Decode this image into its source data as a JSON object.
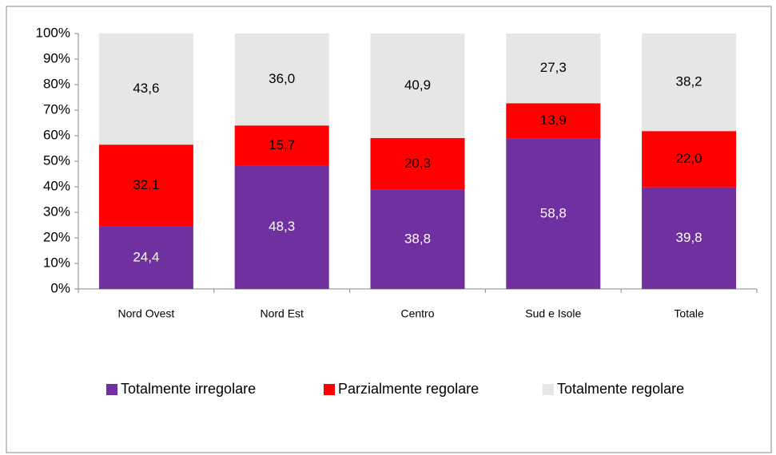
{
  "chart_data": {
    "type": "stacked_bar",
    "categories": [
      "Nord Ovest",
      "Nord Est",
      "Centro",
      "Sud e Isole",
      "Totale"
    ],
    "series": [
      {
        "name": "Totalmente irregolare",
        "color": "#7030a0",
        "label_color": "#ffffff",
        "values": [
          24.4,
          48.3,
          38.8,
          58.8,
          39.8
        ],
        "value_labels": [
          "24,4",
          "48,3",
          "38,8",
          "58,8",
          "39,8"
        ]
      },
      {
        "name": "Parzialmente regolare",
        "color": "#ff0000",
        "label_color": "#000000",
        "values": [
          32.1,
          15.7,
          20.3,
          13.9,
          22.0
        ],
        "value_labels": [
          "32,1",
          "15,7",
          "20,3",
          "13,9",
          "22,0"
        ]
      },
      {
        "name": "Totalmente regolare",
        "color": "#e6e6e6",
        "label_color": "#000000",
        "values": [
          43.6,
          36.0,
          40.9,
          27.3,
          38.2
        ],
        "value_labels": [
          "43,6",
          "36,0",
          "40,9",
          "27,3",
          "38,2"
        ]
      }
    ],
    "ylim": [
      0,
      100
    ],
    "yticks": [
      {
        "value": 0,
        "label": "0%"
      },
      {
        "value": 10,
        "label": "10%"
      },
      {
        "value": 20,
        "label": "20%"
      },
      {
        "value": 30,
        "label": "30%"
      },
      {
        "value": 40,
        "label": "40%"
      },
      {
        "value": 50,
        "label": "50%"
      },
      {
        "value": 60,
        "label": "60%"
      },
      {
        "value": 70,
        "label": "70%"
      },
      {
        "value": 80,
        "label": "80%"
      },
      {
        "value": 90,
        "label": "90%"
      },
      {
        "value": 100,
        "label": "100%"
      }
    ],
    "legend": "bottom"
  }
}
